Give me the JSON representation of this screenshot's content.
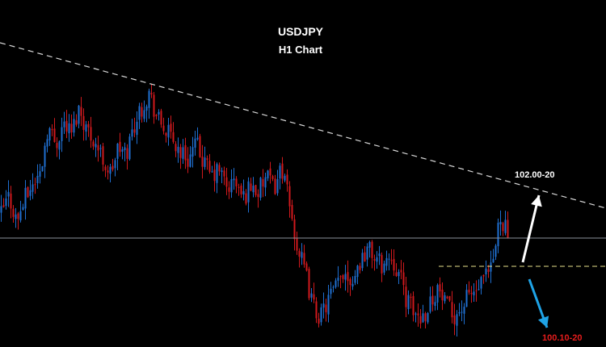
{
  "chart_data": {
    "type": "candlestick",
    "title": "USDJPY",
    "subtitle": "H1 Chart",
    "colors": {
      "background": "#000000",
      "bull": "#1f6fd1",
      "bear": "#d0191d",
      "trendline": "#d9d9d9",
      "support": "#8a8f9a",
      "breakout": "#e6e08a",
      "up_arrow": "#ffffff",
      "down_arrow": "#1fa3e6",
      "up_target": "#ffffff",
      "down_target": "#e51c1c"
    },
    "price_path": [
      101.35,
      101.6,
      101.25,
      101.55,
      101.75,
      101.9,
      102.55,
      102.3,
      102.6,
      102.45,
      102.8,
      102.5,
      102.35,
      102.1,
      101.9,
      102.25,
      102.15,
      102.55,
      102.8,
      103.0,
      102.65,
      102.5,
      102.35,
      102.2,
      102.1,
      102.3,
      102.05,
      101.85,
      101.95,
      101.7,
      101.8,
      101.55,
      101.75,
      101.65,
      101.85,
      101.7,
      102.0,
      101.45,
      100.9,
      100.55,
      100.1,
      99.95,
      100.2,
      100.35,
      100.6,
      100.45,
      100.7,
      100.9,
      100.75,
      100.65,
      100.8,
      100.55,
      100.2,
      100.0,
      99.95,
      100.15,
      100.35,
      100.1,
      99.98,
      100.05,
      100.25,
      100.3,
      100.45,
      100.6,
      101.35,
      101.1
    ],
    "trendline": {
      "from": 103.45,
      "to": 101.75,
      "style": "dashed"
    },
    "support_level": 101.2,
    "breakout_level": 100.9,
    "targets": [
      {
        "label": "102.00-20",
        "direction": "up"
      },
      {
        "label": "100.10-20",
        "direction": "down"
      }
    ]
  }
}
